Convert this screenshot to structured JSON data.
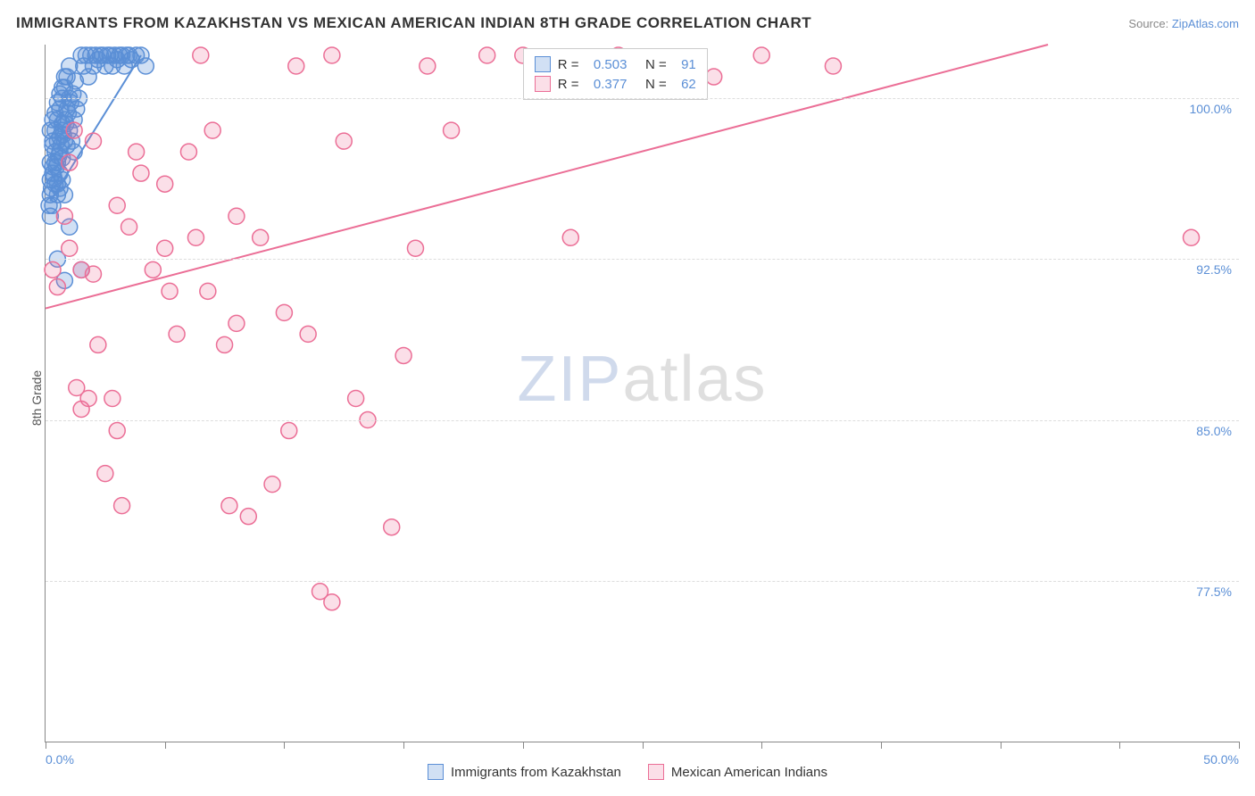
{
  "header": {
    "title": "IMMIGRANTS FROM KAZAKHSTAN VS MEXICAN AMERICAN INDIAN 8TH GRADE CORRELATION CHART",
    "source_label": "Source:",
    "source_name": "ZipAtlas.com"
  },
  "chart": {
    "type": "scatter",
    "y_axis_label": "8th Grade",
    "xlim": [
      0.0,
      50.0
    ],
    "ylim": [
      70.0,
      102.5
    ],
    "x_ticks_major": [
      0,
      5,
      10,
      15,
      20,
      25,
      30,
      35,
      40,
      45,
      50
    ],
    "x_tick_labels": {
      "0": "0.0%",
      "50": "50.0%"
    },
    "y_gridlines": [
      77.5,
      85.0,
      92.5,
      100.0
    ],
    "y_tick_labels": {
      "77.5": "77.5%",
      "85.0": "85.0%",
      "92.5": "92.5%",
      "100.0": "100.0%"
    },
    "grid_color": "#dddddd",
    "axis_color": "#888888",
    "tick_label_color": "#5b8fd6",
    "background_color": "#ffffff",
    "marker_radius": 9,
    "marker_stroke_width": 1.5,
    "trendline_width": 2,
    "series": [
      {
        "key": "kazakhstan",
        "label": "Immigrants from Kazakhstan",
        "fill": "rgba(91,143,214,0.28)",
        "stroke": "#5b8fd6",
        "r": 0.503,
        "n": 91,
        "trendline": {
          "x1": 0.2,
          "y1": 95.2,
          "x2": 4.0,
          "y2": 102.0
        },
        "points": [
          [
            0.2,
            95.5
          ],
          [
            0.3,
            96.5
          ],
          [
            0.4,
            97.0
          ],
          [
            0.5,
            96.0
          ],
          [
            0.3,
            95.0
          ],
          [
            0.6,
            97.5
          ],
          [
            0.7,
            98.5
          ],
          [
            0.8,
            99.0
          ],
          [
            0.9,
            99.5
          ],
          [
            1.0,
            100.0
          ],
          [
            0.5,
            97.0
          ],
          [
            0.6,
            96.5
          ],
          [
            0.7,
            97.2
          ],
          [
            0.8,
            98.0
          ],
          [
            0.9,
            97.8
          ],
          [
            1.0,
            98.5
          ],
          [
            1.1,
            98.0
          ],
          [
            1.2,
            99.0
          ],
          [
            1.3,
            99.5
          ],
          [
            1.4,
            100.0
          ],
          [
            1.5,
            102.0
          ],
          [
            1.6,
            101.5
          ],
          [
            1.7,
            102.0
          ],
          [
            1.8,
            101.0
          ],
          [
            1.9,
            102.0
          ],
          [
            2.0,
            101.5
          ],
          [
            2.1,
            102.0
          ],
          [
            2.2,
            101.8
          ],
          [
            2.3,
            102.0
          ],
          [
            2.4,
            102.0
          ],
          [
            2.5,
            101.5
          ],
          [
            2.6,
            102.0
          ],
          [
            2.7,
            102.0
          ],
          [
            2.8,
            101.5
          ],
          [
            2.9,
            102.0
          ],
          [
            3.0,
            101.8
          ],
          [
            3.1,
            102.0
          ],
          [
            3.2,
            102.0
          ],
          [
            3.3,
            101.5
          ],
          [
            3.4,
            102.0
          ],
          [
            3.5,
            102.0
          ],
          [
            3.6,
            101.8
          ],
          [
            3.8,
            102.0
          ],
          [
            4.0,
            102.0
          ],
          [
            4.2,
            101.5
          ],
          [
            0.3,
            97.8
          ],
          [
            0.4,
            98.5
          ],
          [
            0.5,
            99.0
          ],
          [
            0.6,
            99.5
          ],
          [
            0.7,
            100.0
          ],
          [
            0.8,
            100.5
          ],
          [
            0.9,
            101.0
          ],
          [
            1.0,
            101.5
          ],
          [
            0.4,
            96.0
          ],
          [
            0.5,
            95.5
          ],
          [
            0.6,
            95.8
          ],
          [
            0.7,
            96.2
          ],
          [
            0.2,
            97.0
          ],
          [
            0.3,
            98.0
          ],
          [
            0.4,
            97.5
          ],
          [
            0.5,
            98.0
          ],
          [
            0.6,
            98.2
          ],
          [
            0.7,
            98.8
          ],
          [
            0.2,
            98.5
          ],
          [
            0.3,
            99.0
          ],
          [
            0.4,
            99.3
          ],
          [
            0.5,
            99.8
          ],
          [
            0.6,
            100.2
          ],
          [
            0.7,
            100.5
          ],
          [
            0.8,
            101.0
          ],
          [
            0.2,
            96.2
          ],
          [
            0.3,
            96.8
          ],
          [
            0.15,
            95.0
          ],
          [
            0.25,
            95.8
          ],
          [
            0.35,
            96.3
          ],
          [
            0.45,
            96.8
          ],
          [
            0.55,
            97.3
          ],
          [
            0.65,
            97.8
          ],
          [
            0.75,
            98.3
          ],
          [
            0.85,
            98.8
          ],
          [
            0.95,
            99.3
          ],
          [
            1.05,
            99.8
          ],
          [
            1.15,
            100.2
          ],
          [
            1.25,
            100.8
          ],
          [
            0.2,
            94.5
          ],
          [
            0.8,
            95.5
          ],
          [
            1.0,
            94.0
          ],
          [
            1.5,
            92.0
          ],
          [
            0.5,
            92.5
          ],
          [
            0.8,
            91.5
          ],
          [
            1.2,
            97.5
          ]
        ]
      },
      {
        "key": "mexican",
        "label": "Mexican American Indians",
        "fill": "rgba(235,110,150,0.22)",
        "stroke": "#eb6e96",
        "r": 0.377,
        "n": 62,
        "trendline": {
          "x1": 0.0,
          "y1": 90.2,
          "x2": 42.0,
          "y2": 102.5
        },
        "points": [
          [
            0.3,
            92.0
          ],
          [
            0.5,
            91.2
          ],
          [
            0.8,
            94.5
          ],
          [
            1.0,
            93.0
          ],
          [
            1.3,
            86.5
          ],
          [
            1.5,
            85.5
          ],
          [
            1.5,
            92.0
          ],
          [
            1.8,
            86.0
          ],
          [
            2.0,
            98.0
          ],
          [
            2.2,
            88.5
          ],
          [
            2.5,
            82.5
          ],
          [
            2.8,
            86.0
          ],
          [
            3.0,
            84.5
          ],
          [
            3.2,
            81.0
          ],
          [
            3.5,
            94.0
          ],
          [
            3.8,
            97.5
          ],
          [
            4.0,
            96.5
          ],
          [
            5.0,
            93.0
          ],
          [
            5.2,
            91.0
          ],
          [
            5.5,
            89.0
          ],
          [
            6.0,
            97.5
          ],
          [
            6.3,
            93.5
          ],
          [
            6.5,
            102.0
          ],
          [
            7.0,
            98.5
          ],
          [
            7.5,
            88.5
          ],
          [
            7.7,
            81.0
          ],
          [
            8.0,
            94.5
          ],
          [
            8.0,
            89.5
          ],
          [
            8.5,
            80.5
          ],
          [
            9.0,
            93.5
          ],
          [
            9.5,
            82.0
          ],
          [
            10.0,
            90.0
          ],
          [
            10.2,
            84.5
          ],
          [
            10.5,
            101.5
          ],
          [
            11.0,
            89.0
          ],
          [
            11.5,
            77.0
          ],
          [
            12.0,
            102.0
          ],
          [
            12.0,
            76.5
          ],
          [
            12.5,
            98.0
          ],
          [
            13.0,
            86.0
          ],
          [
            13.5,
            85.0
          ],
          [
            14.5,
            80.0
          ],
          [
            15.0,
            88.0
          ],
          [
            15.5,
            93.0
          ],
          [
            16.0,
            101.5
          ],
          [
            17.0,
            98.5
          ],
          [
            18.5,
            102.0
          ],
          [
            20.0,
            102.0
          ],
          [
            22.0,
            93.5
          ],
          [
            24.0,
            102.0
          ],
          [
            26.0,
            101.5
          ],
          [
            28.0,
            101.0
          ],
          [
            30.0,
            102.0
          ],
          [
            33.0,
            101.5
          ],
          [
            48.0,
            93.5
          ],
          [
            2.0,
            91.8
          ],
          [
            3.0,
            95.0
          ],
          [
            4.5,
            92.0
          ],
          [
            5.0,
            96.0
          ],
          [
            6.8,
            91.0
          ],
          [
            1.0,
            97.0
          ],
          [
            1.2,
            98.5
          ]
        ]
      }
    ]
  },
  "legend_top": {
    "rows": [
      {
        "series_key": "kazakhstan",
        "r_label": "R =",
        "r_value": "0.503",
        "n_label": "N =",
        "n_value": "91"
      },
      {
        "series_key": "mexican",
        "r_label": "R =",
        "r_value": "0.377",
        "n_label": "N =",
        "n_value": "62"
      }
    ]
  },
  "watermark": {
    "part1": "ZIP",
    "part2": "atlas"
  }
}
